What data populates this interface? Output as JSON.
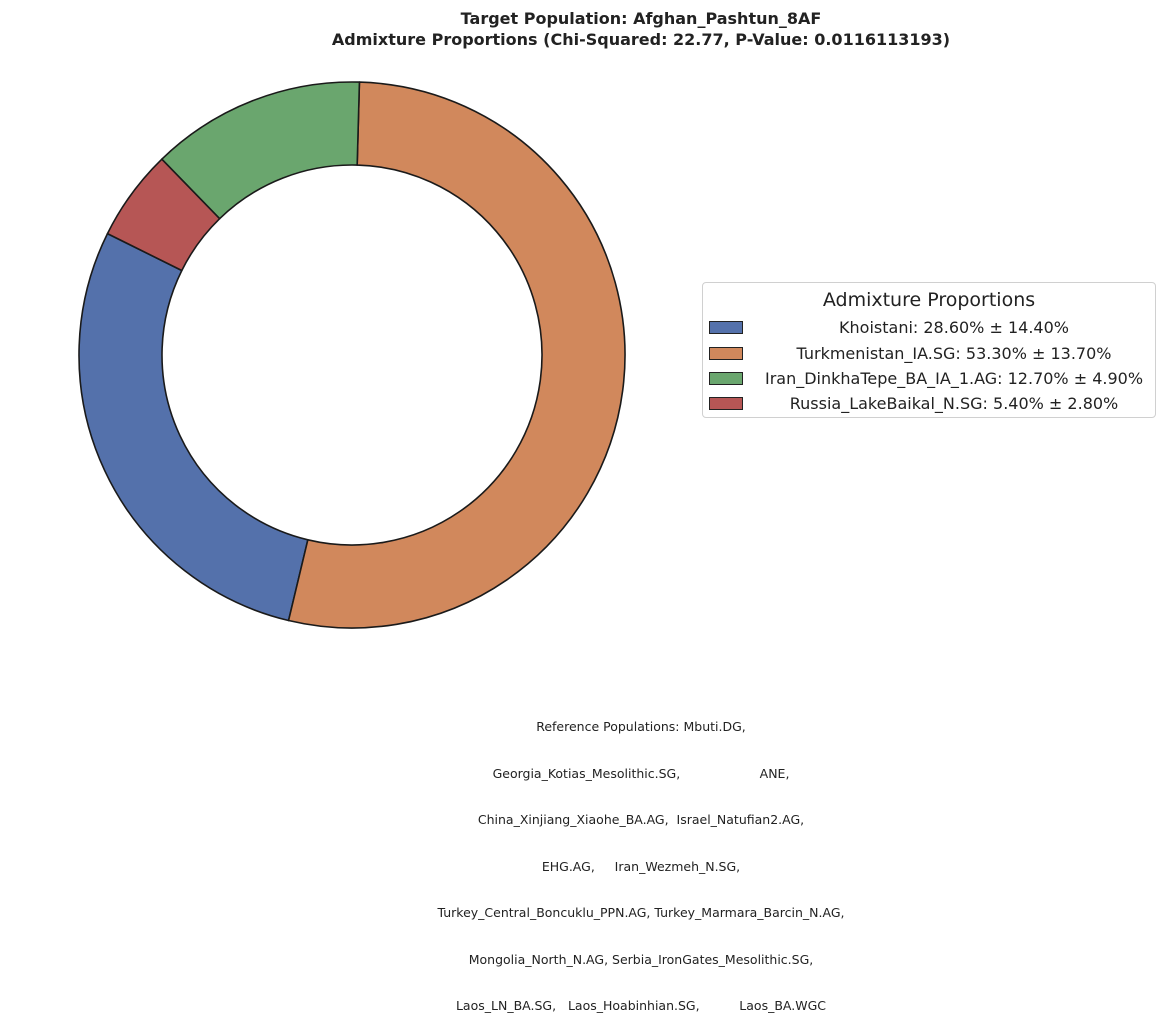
{
  "chart_data": {
    "type": "pie",
    "title": "Target Population: Afghan_Pashtun_8AF",
    "subtitle": "Admixture Proportions (Chi-Squared: 22.77, P-Value: 0.0116113193)",
    "legend": {
      "title": "Admixture Proportions",
      "placement": "center-right"
    },
    "slices": [
      {
        "name": "Khoistani",
        "value": 28.6,
        "error": 14.4,
        "label": "Khoistani: 28.60% ± 14.40%",
        "color": "#5471ab"
      },
      {
        "name": "Turkmenistan_IA.SG",
        "value": 53.3,
        "error": 13.7,
        "label": "Turkmenistan_IA.SG: 53.30% ± 13.70%",
        "color": "#d1885c"
      },
      {
        "name": "Iran_DinkhaTepe_BA_IA_1.AG",
        "value": 12.7,
        "error": 4.9,
        "label": "Iran_DinkhaTepe_BA_IA_1.AG: 12.70% ± 4.90%",
        "color": "#6aa66e"
      },
      {
        "name": "Russia_LakeBaikal_N.SG",
        "value": 5.4,
        "error": 2.8,
        "label": "Russia_LakeBaikal_N.SG: 5.40% ± 2.80%",
        "color": "#b65655"
      }
    ],
    "footer_lines": [
      "Reference Populations: Mbuti.DG,",
      "Georgia_Kotias_Mesolithic.SG,                    ANE,",
      "China_Xinjiang_Xiaohe_BA.AG,  Israel_Natufian2.AG,",
      "EHG.AG,     Iran_Wezmeh_N.SG,",
      "Turkey_Central_Boncuklu_PPN.AG, Turkey_Marmara_Barcin_N.AG,",
      "Mongolia_North_N.AG, Serbia_IronGates_Mesolithic.SG,",
      "Laos_LN_BA.SG,   Laos_Hoabinhian.SG,          Laos_BA.WGC"
    ]
  }
}
